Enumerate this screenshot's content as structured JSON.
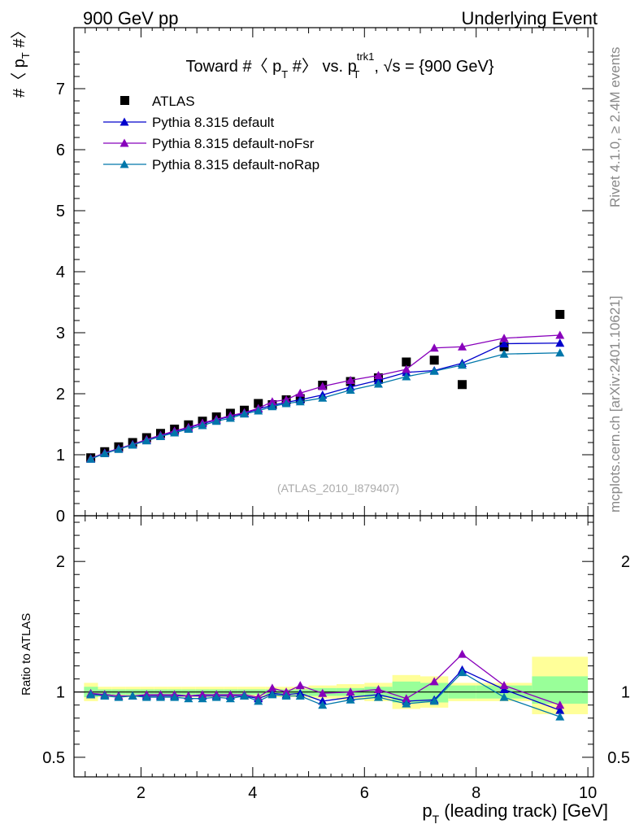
{
  "header": {
    "left": "900 GeV pp",
    "right": "Underlying Event",
    "side_top": "Rivet 4.1.0, ≥ 2.4M events",
    "side_bottom": "mcplots.cern.ch [arXiv:2401.10621]",
    "watermark": "(ATLAS_2010_I879407)"
  },
  "colors": {
    "atlas": "#000000",
    "default": "#0000cc",
    "noFsr": "#8800bb",
    "noRap": "#0077aa",
    "band_outer": "#ffff99",
    "band_inner": "#99ff99"
  },
  "chart_data": [
    {
      "type": "line",
      "title_parts": {
        "pre": "Toward #〈 p",
        "pre_sub": "T",
        "mid": " #〉 vs. p",
        "mid_sup": "trk1",
        "mid_sub": "T",
        "post": ", √s = {900 GeV}"
      },
      "ylabel_parts": {
        "pre": "#〈 p",
        "sub": "T",
        "post": " #〉"
      },
      "xlim": [
        0.8,
        10.1
      ],
      "ylim": [
        0,
        8
      ],
      "y_ticks": [
        0,
        1,
        2,
        3,
        4,
        5,
        6,
        7
      ],
      "x": [
        1.1,
        1.35,
        1.6,
        1.85,
        2.1,
        2.35,
        2.6,
        2.85,
        3.1,
        3.35,
        3.6,
        3.85,
        4.1,
        4.35,
        4.6,
        4.85,
        5.25,
        5.75,
        6.25,
        6.75,
        7.25,
        7.75,
        8.5,
        9.5
      ],
      "legend_position": "top-left",
      "series": [
        {
          "name": "ATLAS",
          "style": "square",
          "color_key": "atlas",
          "values": [
            0.95,
            1.05,
            1.13,
            1.2,
            1.28,
            1.35,
            1.42,
            1.49,
            1.55,
            1.62,
            1.68,
            1.73,
            1.84,
            1.82,
            1.9,
            1.92,
            2.14,
            2.2,
            2.26,
            2.52,
            2.55,
            2.15,
            2.77,
            3.3
          ]
        },
        {
          "name": "Pythia 8.315 default",
          "style": "triangle",
          "color_key": "default",
          "values": [
            0.93,
            1.03,
            1.1,
            1.17,
            1.24,
            1.31,
            1.38,
            1.44,
            1.51,
            1.57,
            1.63,
            1.68,
            1.75,
            1.81,
            1.86,
            1.9,
            1.98,
            2.11,
            2.22,
            2.35,
            2.38,
            2.5,
            2.82,
            2.83
          ]
        },
        {
          "name": "Pythia 8.315 default-noFsr",
          "style": "triangle",
          "color_key": "noFsr",
          "values": [
            0.94,
            1.03,
            1.1,
            1.17,
            1.25,
            1.32,
            1.39,
            1.45,
            1.52,
            1.58,
            1.64,
            1.69,
            1.76,
            1.87,
            1.9,
            2.01,
            2.12,
            2.22,
            2.3,
            2.4,
            2.75,
            2.77,
            2.91,
            2.96
          ]
        },
        {
          "name": "Pythia 8.315 default-noRap",
          "style": "triangle",
          "color_key": "noRap",
          "values": [
            0.93,
            1.02,
            1.09,
            1.16,
            1.23,
            1.3,
            1.36,
            1.42,
            1.48,
            1.55,
            1.6,
            1.67,
            1.72,
            1.79,
            1.84,
            1.87,
            1.93,
            2.06,
            2.16,
            2.28,
            2.37,
            2.47,
            2.65,
            2.67
          ]
        }
      ]
    },
    {
      "type": "line",
      "ylabel": "Ratio to ATLAS",
      "xlabel_parts": {
        "pre": "p",
        "sub": "T",
        "post": " (leading track) [GeV]"
      },
      "xlim": [
        0.8,
        10.1
      ],
      "ylim": [
        0.35,
        2.35
      ],
      "x_ticks": [
        2,
        4,
        6,
        8,
        10
      ],
      "y_ticks": [
        0.5,
        1,
        2
      ],
      "reference_line": 1,
      "band_edges": [
        0.98,
        1.23,
        1.48,
        1.73,
        1.98,
        2.23,
        2.48,
        2.73,
        2.98,
        3.23,
        3.48,
        3.73,
        3.98,
        4.23,
        4.48,
        4.73,
        5.0,
        5.5,
        6.0,
        6.5,
        7.0,
        7.5,
        8.0,
        9.0,
        10.0
      ],
      "band_outer": [
        [
          0.93,
          1.07
        ],
        [
          0.96,
          1.04
        ],
        [
          0.96,
          1.04
        ],
        [
          0.96,
          1.04
        ],
        [
          0.96,
          1.04
        ],
        [
          0.96,
          1.04
        ],
        [
          0.96,
          1.04
        ],
        [
          0.96,
          1.04
        ],
        [
          0.96,
          1.04
        ],
        [
          0.96,
          1.04
        ],
        [
          0.96,
          1.04
        ],
        [
          0.96,
          1.04
        ],
        [
          0.96,
          1.04
        ],
        [
          0.96,
          1.04
        ],
        [
          0.96,
          1.04
        ],
        [
          0.96,
          1.04
        ],
        [
          0.95,
          1.05
        ],
        [
          0.94,
          1.06
        ],
        [
          0.93,
          1.07
        ],
        [
          0.87,
          1.13
        ],
        [
          0.88,
          1.12
        ],
        [
          0.93,
          1.07
        ],
        [
          0.93,
          1.07
        ],
        [
          0.83,
          1.27
        ]
      ],
      "band_inner": [
        [
          0.96,
          1.04
        ],
        [
          0.98,
          1.02
        ],
        [
          0.98,
          1.02
        ],
        [
          0.98,
          1.02
        ],
        [
          0.98,
          1.02
        ],
        [
          0.98,
          1.02
        ],
        [
          0.98,
          1.02
        ],
        [
          0.98,
          1.02
        ],
        [
          0.98,
          1.02
        ],
        [
          0.98,
          1.02
        ],
        [
          0.98,
          1.02
        ],
        [
          0.98,
          1.02
        ],
        [
          0.98,
          1.02
        ],
        [
          0.98,
          1.02
        ],
        [
          0.98,
          1.02
        ],
        [
          0.98,
          1.02
        ],
        [
          0.97,
          1.03
        ],
        [
          0.97,
          1.03
        ],
        [
          0.96,
          1.04
        ],
        [
          0.92,
          1.08
        ],
        [
          0.92,
          1.07
        ],
        [
          0.95,
          1.05
        ],
        [
          0.95,
          1.05
        ],
        [
          0.91,
          1.12
        ]
      ],
      "x": [
        1.1,
        1.35,
        1.6,
        1.85,
        2.1,
        2.35,
        2.6,
        2.85,
        3.1,
        3.35,
        3.6,
        3.85,
        4.1,
        4.35,
        4.6,
        4.85,
        5.25,
        5.75,
        6.25,
        6.75,
        7.25,
        7.75,
        8.5,
        9.5
      ],
      "series": [
        {
          "name": "Pythia 8.315 default",
          "color_key": "default",
          "values": [
            0.98,
            0.98,
            0.97,
            0.97,
            0.97,
            0.97,
            0.97,
            0.97,
            0.97,
            0.97,
            0.97,
            0.97,
            0.95,
            0.99,
            0.98,
            0.99,
            0.93,
            0.96,
            0.98,
            0.93,
            0.94,
            1.17,
            1.02,
            0.86
          ]
        },
        {
          "name": "Pythia 8.315 default-noFsr",
          "color_key": "noFsr",
          "values": [
            0.99,
            0.98,
            0.97,
            0.97,
            0.98,
            0.98,
            0.98,
            0.97,
            0.98,
            0.98,
            0.98,
            0.98,
            0.96,
            1.03,
            1.0,
            1.05,
            0.99,
            1.0,
            1.02,
            0.95,
            1.08,
            1.29,
            1.05,
            0.9
          ]
        },
        {
          "name": "Pythia 8.315 default-noRap",
          "color_key": "noRap",
          "values": [
            0.98,
            0.97,
            0.96,
            0.97,
            0.96,
            0.96,
            0.96,
            0.95,
            0.95,
            0.96,
            0.95,
            0.97,
            0.93,
            0.98,
            0.97,
            0.97,
            0.9,
            0.94,
            0.96,
            0.91,
            0.93,
            1.15,
            0.96,
            0.81
          ]
        }
      ]
    }
  ]
}
